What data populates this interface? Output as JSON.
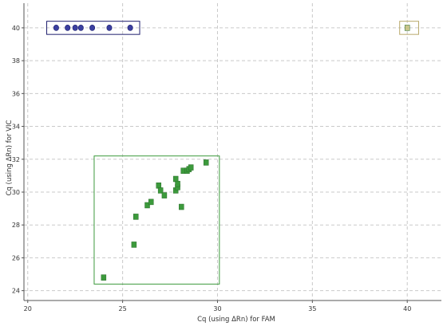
{
  "chart_data": {
    "type": "scatter",
    "xlabel": "Cq (using ΔRn) for FAM",
    "ylabel": "Cq (using ΔRn) for VIC",
    "xlim": [
      19.8,
      41.8
    ],
    "ylim": [
      23.4,
      41.5
    ],
    "x_ticks": [
      20,
      25,
      30,
      35,
      40
    ],
    "y_ticks": [
      24,
      26,
      28,
      30,
      32,
      34,
      36,
      38,
      40
    ],
    "grid": true,
    "series": [
      {
        "marker": "circle",
        "color": "#3b3fa0",
        "points": [
          {
            "x": 21.5,
            "y": 40
          },
          {
            "x": 22.1,
            "y": 40
          },
          {
            "x": 22.5,
            "y": 40
          },
          {
            "x": 22.8,
            "y": 40
          },
          {
            "x": 23.4,
            "y": 40
          },
          {
            "x": 24.3,
            "y": 40
          },
          {
            "x": 25.4,
            "y": 40
          }
        ],
        "cluster_box": {
          "x0": 21.0,
          "x1": 25.9,
          "y0": 39.6,
          "y1": 40.4,
          "color": "#1f1f6e"
        }
      },
      {
        "marker": "square",
        "color": "#3c9a3c",
        "points": [
          {
            "x": 24.0,
            "y": 24.8
          },
          {
            "x": 25.6,
            "y": 26.8
          },
          {
            "x": 25.7,
            "y": 28.5
          },
          {
            "x": 26.3,
            "y": 29.2
          },
          {
            "x": 26.5,
            "y": 29.4
          },
          {
            "x": 26.9,
            "y": 30.4
          },
          {
            "x": 27.0,
            "y": 30.1
          },
          {
            "x": 27.2,
            "y": 29.8
          },
          {
            "x": 27.8,
            "y": 30.8
          },
          {
            "x": 27.8,
            "y": 30.1
          },
          {
            "x": 27.9,
            "y": 30.3
          },
          {
            "x": 27.9,
            "y": 30.5
          },
          {
            "x": 28.1,
            "y": 29.1
          },
          {
            "x": 28.2,
            "y": 31.3
          },
          {
            "x": 28.4,
            "y": 31.3
          },
          {
            "x": 28.5,
            "y": 31.4
          },
          {
            "x": 28.6,
            "y": 31.5
          },
          {
            "x": 29.4,
            "y": 31.8
          }
        ],
        "cluster_box": {
          "x0": 23.5,
          "x1": 30.1,
          "y0": 24.4,
          "y1": 32.2,
          "color": "#3c9a3c"
        }
      },
      {
        "marker": "square",
        "color": "#c8c48a",
        "points": [
          {
            "x": 40.0,
            "y": 40
          }
        ],
        "cluster_box": {
          "x0": 39.6,
          "x1": 40.6,
          "y0": 39.6,
          "y1": 40.4,
          "color": "#b9a96a"
        }
      }
    ]
  }
}
